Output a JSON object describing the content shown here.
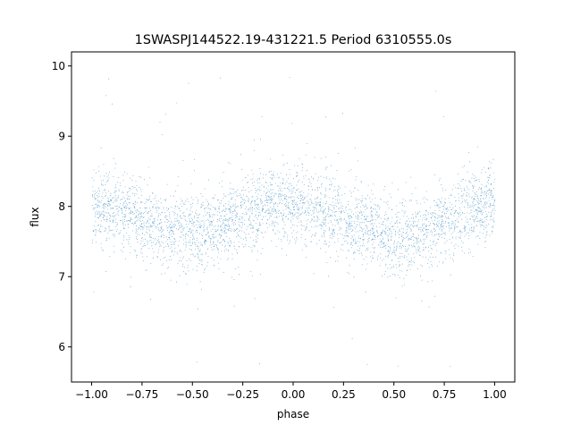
{
  "chart_data": {
    "type": "scatter",
    "title": "1SWASPJ144522.19-431221.5 Period 6310555.0s",
    "xlabel": "phase",
    "ylabel": "flux",
    "xlim": [
      -1.1,
      1.1
    ],
    "ylim": [
      5.5,
      10.2
    ],
    "x_ticks": [
      -1.0,
      -0.75,
      -0.5,
      -0.25,
      0.0,
      0.25,
      0.5,
      0.75,
      1.0
    ],
    "x_tick_labels": [
      "−1.00",
      "−0.75",
      "−0.50",
      "−0.25",
      "0.00",
      "0.25",
      "0.50",
      "0.75",
      "1.00"
    ],
    "y_ticks": [
      6,
      7,
      8,
      9,
      10
    ],
    "y_tick_labels": [
      "6",
      "7",
      "8",
      "9",
      "10"
    ],
    "grid": false,
    "legend": "none",
    "marker_color": "#1f77b4",
    "series": [
      {
        "phase_range": [
          -1.0,
          1.0
        ],
        "mean_flux_profile": {
          "phase": [
            -1.0,
            -0.875,
            -0.75,
            -0.625,
            -0.5,
            -0.375,
            -0.25,
            -0.125,
            0.0,
            0.125,
            0.25,
            0.375,
            0.5,
            0.625,
            0.75,
            0.875,
            1.0
          ],
          "flux": [
            8.0,
            7.95,
            7.8,
            7.7,
            7.6,
            7.7,
            7.85,
            8.0,
            8.05,
            7.95,
            7.8,
            7.7,
            7.55,
            7.6,
            7.8,
            7.95,
            8.05
          ]
        },
        "typical_spread": 0.35,
        "outlier_range": [
          5.7,
          9.9
        ]
      }
    ]
  }
}
